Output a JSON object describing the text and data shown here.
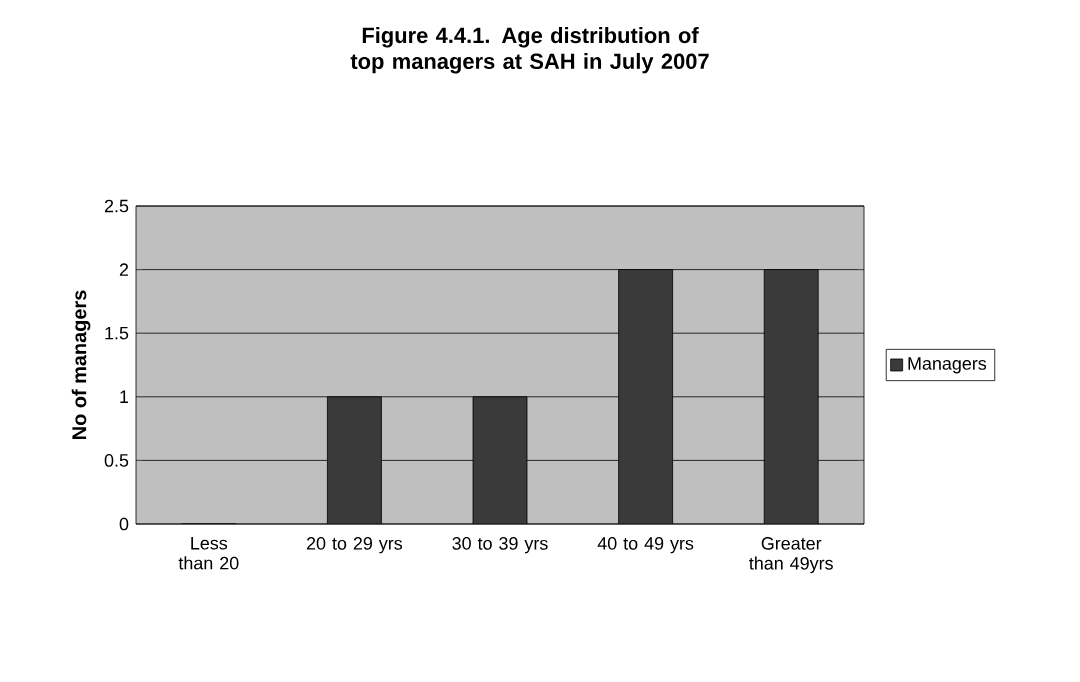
{
  "chart_data": {
    "type": "bar",
    "title": "Figure 4.4.1. Age distribution of top managers at SAH in July 2007",
    "ylabel": "No of managers",
    "categories": [
      "Less than 20",
      "20 to 29 yrs",
      "30 to 39 yrs",
      "40 to 49 yrs",
      "Greater than 49yrs"
    ],
    "series": [
      {
        "name": "Managers",
        "color": "#3a3a3a",
        "values": [
          0,
          1,
          1,
          2,
          2
        ]
      }
    ],
    "ylim": [
      0,
      2.5
    ],
    "yticks": [
      0,
      0.5,
      1,
      1.5,
      2,
      2.5
    ],
    "grid": "y",
    "legend": "right"
  }
}
